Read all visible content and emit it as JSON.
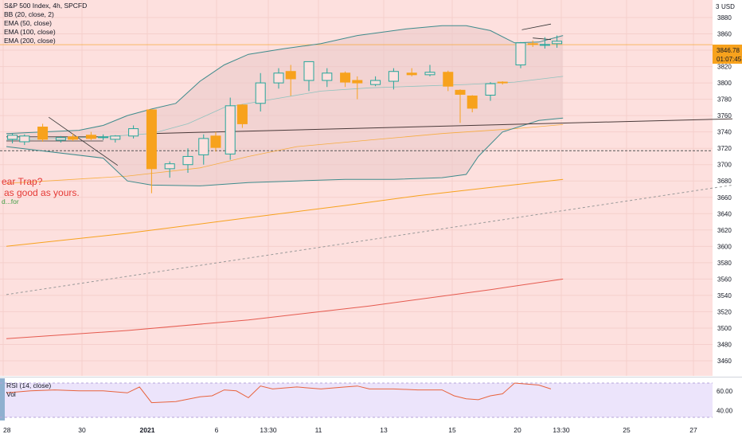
{
  "chart_data": {
    "type": "candlestick",
    "symbol_title": "S&P 500 Index, 4h, SPCFD",
    "indicators": [
      "BB (20, close, 2)",
      "EMA (50, close)",
      "EMA (100, close)",
      "EMA (200, close)"
    ],
    "currency": "USD",
    "price_axis": {
      "ticks": [
        3880,
        3860,
        3840,
        3820,
        3800,
        3780,
        3760,
        3740,
        3720,
        3700,
        3680,
        3660,
        3640,
        3620,
        3600,
        3580,
        3560,
        3540,
        3520,
        3500,
        3480,
        3460
      ]
    },
    "last_price": {
      "value": "3846.78",
      "countdown": "01:07:45"
    },
    "time_axis": {
      "labels": [
        "28",
        "30",
        "2021",
        "6",
        "13:30",
        "11",
        "13",
        "15",
        "20",
        "13:30",
        "25",
        "27"
      ]
    },
    "candles": [
      {
        "o": 3731,
        "h": 3738,
        "l": 3726,
        "c": 3736
      },
      {
        "o": 3728,
        "h": 3737,
        "l": 3724,
        "c": 3735
      },
      {
        "o": 3746,
        "h": 3750,
        "l": 3728,
        "c": 3731
      },
      {
        "o": 3730,
        "h": 3735,
        "l": 3727,
        "c": 3733
      },
      {
        "o": 3734,
        "h": 3738,
        "l": 3729,
        "c": 3731
      },
      {
        "o": 3736,
        "h": 3740,
        "l": 3730,
        "c": 3732
      },
      {
        "o": 3733,
        "h": 3737,
        "l": 3730,
        "c": 3734
      },
      {
        "o": 3731,
        "h": 3736,
        "l": 3727,
        "c": 3735
      },
      {
        "o": 3735,
        "h": 3748,
        "l": 3732,
        "c": 3744
      },
      {
        "o": 3767,
        "h": 3768,
        "l": 3665,
        "c": 3695
      },
      {
        "o": 3695,
        "h": 3704,
        "l": 3684,
        "c": 3701
      },
      {
        "o": 3700,
        "h": 3720,
        "l": 3690,
        "c": 3710
      },
      {
        "o": 3712,
        "h": 3737,
        "l": 3700,
        "c": 3732
      },
      {
        "o": 3735,
        "h": 3740,
        "l": 3716,
        "c": 3721
      },
      {
        "o": 3713,
        "h": 3782,
        "l": 3706,
        "c": 3772
      },
      {
        "o": 3773,
        "h": 3774,
        "l": 3745,
        "c": 3750
      },
      {
        "o": 3775,
        "h": 3812,
        "l": 3765,
        "c": 3800
      },
      {
        "o": 3800,
        "h": 3818,
        "l": 3793,
        "c": 3812
      },
      {
        "o": 3814,
        "h": 3822,
        "l": 3784,
        "c": 3805
      },
      {
        "o": 3803,
        "h": 3826,
        "l": 3790,
        "c": 3826
      },
      {
        "o": 3803,
        "h": 3818,
        "l": 3795,
        "c": 3812
      },
      {
        "o": 3812,
        "h": 3814,
        "l": 3795,
        "c": 3801
      },
      {
        "o": 3803,
        "h": 3808,
        "l": 3780,
        "c": 3800
      },
      {
        "o": 3798,
        "h": 3808,
        "l": 3796,
        "c": 3803
      },
      {
        "o": 3802,
        "h": 3818,
        "l": 3792,
        "c": 3814
      },
      {
        "o": 3812,
        "h": 3818,
        "l": 3808,
        "c": 3810
      },
      {
        "o": 3810,
        "h": 3822,
        "l": 3808,
        "c": 3813
      },
      {
        "o": 3813,
        "h": 3815,
        "l": 3790,
        "c": 3796
      },
      {
        "o": 3791,
        "h": 3792,
        "l": 3751,
        "c": 3786
      },
      {
        "o": 3784,
        "h": 3785,
        "l": 3764,
        "c": 3769
      },
      {
        "o": 3785,
        "h": 3801,
        "l": 3778,
        "c": 3799
      },
      {
        "o": 3801,
        "h": 3802,
        "l": 3798,
        "c": 3800
      },
      {
        "o": 3822,
        "h": 3850,
        "l": 3818,
        "c": 3849
      },
      {
        "o": 3848,
        "h": 3852,
        "l": 3844,
        "c": 3847
      },
      {
        "o": 3846,
        "h": 3856,
        "l": 3842,
        "c": 3847
      },
      {
        "o": 3848,
        "h": 3858,
        "l": 3843,
        "c": 3851
      }
    ],
    "candle_slots": [
      0.5,
      1.5,
      3,
      4.5,
      5.5,
      7,
      8,
      9,
      10.5,
      12,
      13.5,
      15,
      16.3,
      17.3,
      18.5,
      19.5,
      21,
      22.5,
      23.5,
      25,
      26.5,
      28,
      29,
      30.5,
      32,
      33.5,
      35,
      36.5,
      37.5,
      38.5,
      40,
      41,
      42.5,
      43.5,
      44.5,
      45.5
    ],
    "bb_upper": [
      [
        0,
        3738
      ],
      [
        6,
        3742
      ],
      [
        8,
        3748
      ],
      [
        10,
        3760
      ],
      [
        12,
        3768
      ],
      [
        14,
        3775
      ],
      [
        16,
        3802
      ],
      [
        18,
        3822
      ],
      [
        20,
        3835
      ],
      [
        23,
        3842
      ],
      [
        26,
        3848
      ],
      [
        29,
        3858
      ],
      [
        33,
        3866
      ],
      [
        36,
        3870
      ],
      [
        38,
        3870
      ],
      [
        40,
        3864
      ],
      [
        42,
        3849
      ],
      [
        44,
        3850
      ],
      [
        46,
        3858
      ]
    ],
    "bb_basis": [
      [
        0,
        3730
      ],
      [
        8,
        3734
      ],
      [
        12,
        3738
      ],
      [
        15,
        3750
      ],
      [
        18,
        3770
      ],
      [
        22,
        3780
      ],
      [
        26,
        3790
      ],
      [
        30,
        3794
      ],
      [
        34,
        3796
      ],
      [
        38,
        3798
      ],
      [
        42,
        3801
      ],
      [
        46,
        3808
      ]
    ],
    "bb_lower": [
      [
        0,
        3722
      ],
      [
        8,
        3708
      ],
      [
        10,
        3680
      ],
      [
        12,
        3675
      ],
      [
        16,
        3674
      ],
      [
        20,
        3678
      ],
      [
        24,
        3680
      ],
      [
        28,
        3682
      ],
      [
        32,
        3682
      ],
      [
        36,
        3684
      ],
      [
        38,
        3688
      ],
      [
        39,
        3710
      ],
      [
        41,
        3740
      ],
      [
        44,
        3754
      ],
      [
        46,
        3757
      ]
    ],
    "ema50": [
      [
        0,
        3677
      ],
      [
        10,
        3686
      ],
      [
        16,
        3696
      ],
      [
        20,
        3710
      ],
      [
        24,
        3722
      ],
      [
        30,
        3730
      ],
      [
        36,
        3738
      ],
      [
        42,
        3744
      ],
      [
        46,
        3749
      ]
    ],
    "ema100": [
      [
        0,
        3600
      ],
      [
        10,
        3616
      ],
      [
        20,
        3635
      ],
      [
        28,
        3650
      ],
      [
        34,
        3662
      ],
      [
        40,
        3672
      ],
      [
        46,
        3682
      ]
    ],
    "ema200": [
      [
        0,
        3487
      ],
      [
        10,
        3497
      ],
      [
        20,
        3510
      ],
      [
        30,
        3527
      ],
      [
        40,
        3547
      ],
      [
        46,
        3560
      ]
    ],
    "trend_dashed": [
      [
        0,
        3541
      ],
      [
        60,
        3675
      ]
    ],
    "support_line": [
      [
        12,
        3738
      ],
      [
        60,
        3756
      ]
    ],
    "horizontal_level": 3717,
    "annotation": {
      "line1": "ear Trap?",
      "line2": "as good as yours.",
      "line3": "d...for"
    },
    "rsi": {
      "label": "RSI (14, close)",
      "sub_label": "Vol",
      "ticks": [
        60.0,
        40.0
      ],
      "values": [
        [
          0,
          58
        ],
        [
          2,
          60
        ],
        [
          4,
          61
        ],
        [
          6,
          60
        ],
        [
          8,
          60
        ],
        [
          10,
          58
        ],
        [
          11,
          64
        ],
        [
          12,
          48
        ],
        [
          14,
          49
        ],
        [
          16,
          54
        ],
        [
          17,
          55
        ],
        [
          18,
          61
        ],
        [
          19,
          60
        ],
        [
          20,
          53
        ],
        [
          21,
          65
        ],
        [
          22,
          62
        ],
        [
          24,
          64
        ],
        [
          26,
          62
        ],
        [
          28,
          64
        ],
        [
          29,
          65
        ],
        [
          30,
          62
        ],
        [
          32,
          62
        ],
        [
          34,
          61
        ],
        [
          36,
          61
        ],
        [
          37,
          55
        ],
        [
          38,
          52
        ],
        [
          39,
          51
        ],
        [
          40,
          55
        ],
        [
          41,
          57
        ],
        [
          42,
          68
        ],
        [
          43,
          67
        ],
        [
          44,
          66
        ],
        [
          45,
          62
        ]
      ],
      "ylim": [
        33,
        68
      ]
    },
    "colors": {
      "up": "#26a69a",
      "down": "#f7a21d",
      "bg": "#fde0de",
      "bb": "#3e8b8c",
      "ema50": "#f7a21d",
      "ema100": "#f7a21d",
      "ema200": "#e55a4f",
      "trend": "#999999",
      "rsi_line": "#e8633d",
      "rsi_bg": "#ece4fb"
    }
  }
}
